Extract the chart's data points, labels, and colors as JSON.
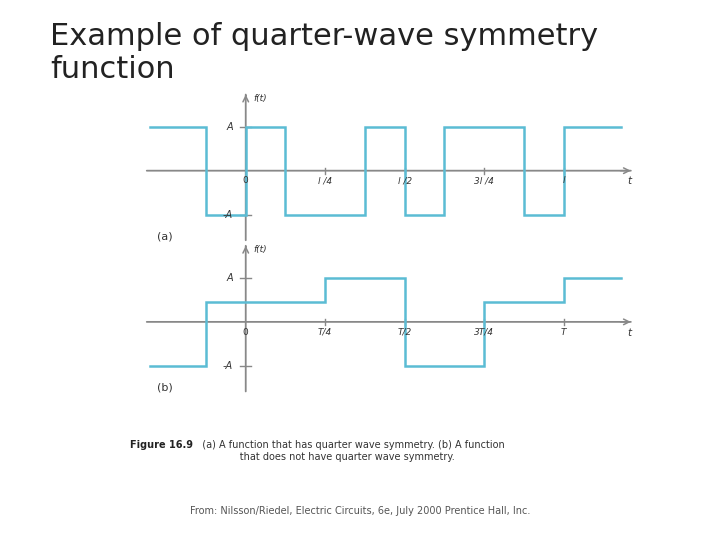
{
  "title": "Example of quarter-wave symmetry\nfunction",
  "title_fontsize": 22,
  "background_color": "#ffffff",
  "wave_color": "#5bbcd4",
  "axis_color": "#888888",
  "text_color": "#333333",
  "label_color": "#555555",
  "A": 1.0,
  "half": 0.45,
  "subplot_a": {
    "label": "(a)",
    "x_tick_positions": [
      0.25,
      0.5,
      0.75,
      1.0
    ],
    "x_tick_labels": [
      "l /4",
      "l /2",
      "3l /4",
      "l"
    ],
    "xa": [
      -0.3,
      -0.125,
      -0.125,
      0.0,
      0.0,
      0.125,
      0.125,
      0.375,
      0.375,
      0.5,
      0.5,
      0.625,
      0.625,
      0.875,
      0.875,
      1.0,
      1.0,
      1.18
    ],
    "ya": [
      1,
      1,
      -1,
      -1,
      1,
      1,
      -1,
      -1,
      1,
      1,
      -1,
      -1,
      1,
      1,
      -1,
      -1,
      1,
      1
    ]
  },
  "subplot_b": {
    "label": "(b)",
    "x_tick_positions": [
      0.25,
      0.5,
      0.75,
      1.0
    ],
    "x_tick_labels": [
      "T/4",
      "T/2",
      "3T/4",
      "T"
    ],
    "xb": [
      -0.3,
      -0.125,
      -0.125,
      0.0,
      0.0,
      0.25,
      0.25,
      0.5,
      0.5,
      0.75,
      0.75,
      1.0,
      1.0,
      1.18
    ],
    "yb": [
      -1,
      -1,
      0.45,
      0.45,
      0.45,
      0.45,
      1,
      1,
      -1,
      -1,
      0.45,
      0.45,
      1,
      1
    ]
  },
  "caption_bold": "Figure 16.9",
  "caption_rest": "  (a) A function that has quarter wave symmetry. (b) A function\n              that does not have quarter wave symmetry.",
  "source_text": "From: Nilsson/Riedel, Electric Circuits, 6e, July 2000 Prentice Hall, Inc."
}
